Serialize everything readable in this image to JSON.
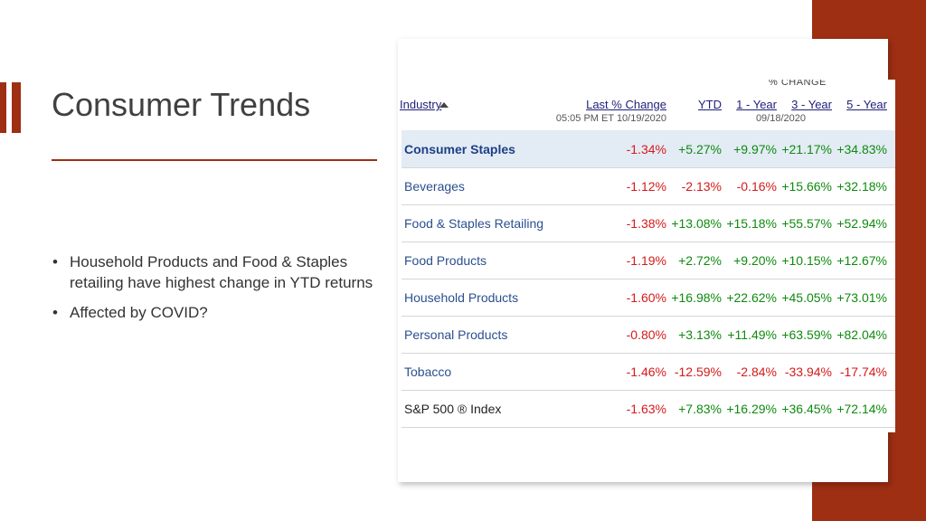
{
  "slide": {
    "title": "Consumer Trends",
    "bullets": [
      "Household Products and Food & Staples retailing have highest change in YTD returns",
      "Affected by COVID?"
    ],
    "accent_color": "#9e2f13"
  },
  "table": {
    "section_label_partial": "% CHANGE",
    "sort_icon": "sort-ascending-icon",
    "headers": {
      "industry": "Industry",
      "last": "Last % Change",
      "ytd": "YTD",
      "one_year": "1 - Year",
      "three_year": "3 - Year",
      "five_year": "5 - Year"
    },
    "subheaders": {
      "last_timestamp": "05:05 PM ET 10/19/2020",
      "period_date": "09/18/2020"
    },
    "rows": [
      {
        "name": "Consumer Staples",
        "last": "-1.34%",
        "ytd": "+5.27%",
        "one_year": "+9.97%",
        "three_year": "+21.17%",
        "five_year": "+34.83%"
      },
      {
        "name": "Beverages",
        "last": "-1.12%",
        "ytd": "-2.13%",
        "one_year": "-0.16%",
        "three_year": "+15.66%",
        "five_year": "+32.18%"
      },
      {
        "name": "Food & Staples Retailing",
        "last": "-1.38%",
        "ytd": "+13.08%",
        "one_year": "+15.18%",
        "three_year": "+55.57%",
        "five_year": "+52.94%"
      },
      {
        "name": "Food Products",
        "last": "-1.19%",
        "ytd": "+2.72%",
        "one_year": "+9.20%",
        "three_year": "+10.15%",
        "five_year": "+12.67%"
      },
      {
        "name": "Household Products",
        "last": "-1.60%",
        "ytd": "+16.98%",
        "one_year": "+22.62%",
        "three_year": "+45.05%",
        "five_year": "+73.01%"
      },
      {
        "name": "Personal Products",
        "last": "-0.80%",
        "ytd": "+3.13%",
        "one_year": "+11.49%",
        "three_year": "+63.59%",
        "five_year": "+82.04%"
      },
      {
        "name": "Tobacco",
        "last": "-1.46%",
        "ytd": "-12.59%",
        "one_year": "-2.84%",
        "three_year": "-33.94%",
        "five_year": "-17.74%"
      },
      {
        "name": "S&P 500 ® Index",
        "last": "-1.63%",
        "ytd": "+7.83%",
        "one_year": "+16.29%",
        "three_year": "+36.45%",
        "five_year": "+72.14%"
      }
    ],
    "colors": {
      "negative": "#d51a1a",
      "positive": "#0f8a0f",
      "link": "#2b4f8f",
      "highlight_row": "#e3ebf5"
    }
  }
}
